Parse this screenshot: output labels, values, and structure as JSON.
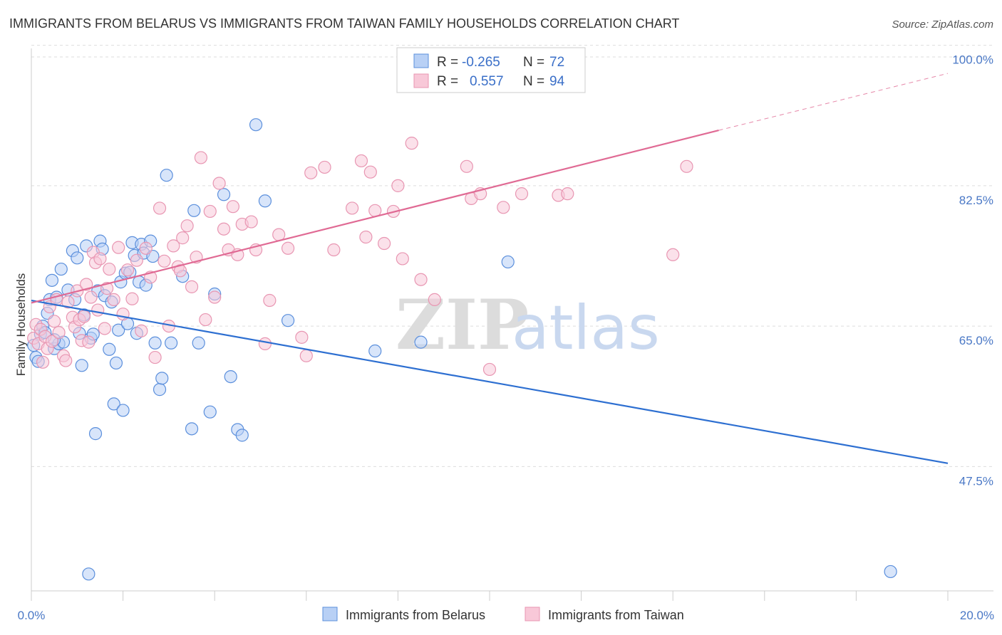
{
  "colors": {
    "belarus_fill": "#b8d0f5",
    "belarus_stroke": "#5b8fdc",
    "belarus_line": "#2d6fd1",
    "taiwan_fill": "#f8c8d8",
    "taiwan_stroke": "#e896b2",
    "taiwan_line": "#e06a94",
    "grid": "#dddddd",
    "axis": "#cccccc"
  },
  "chart_data": {
    "type": "scatter",
    "title": "IMMIGRANTS FROM BELARUS VS IMMIGRANTS FROM TAIWAN FAMILY HOUSEHOLDS CORRELATION CHART",
    "source": "Source: ZipAtlas.com",
    "ylabel": "Family Households",
    "xlabel": "",
    "xlim": [
      0,
      20
    ],
    "ylim": [
      32,
      100.5
    ],
    "grid": true,
    "y_ticks": [
      {
        "value": 100,
        "label": "100.0%"
      },
      {
        "value": 82.5,
        "label": "82.5%"
      },
      {
        "value": 65,
        "label": "65.0%"
      },
      {
        "value": 47.5,
        "label": "47.5%"
      }
    ],
    "x_tick_labels": {
      "min": "0.0%",
      "max": "20.0%"
    },
    "legend": {
      "rows": [
        {
          "r_label": "R =",
          "r_value": "-0.265",
          "n_label": "N =",
          "n_value": "72"
        },
        {
          "r_label": "R =",
          "r_value": "0.557",
          "n_label": "N =",
          "n_value": "94"
        }
      ]
    },
    "watermark": {
      "zip": "ZIP",
      "atlas": "atlas"
    },
    "series": [
      {
        "name": "Immigrants from Belarus",
        "trend": {
          "x": [
            0,
            20
          ],
          "y": [
            68.2,
            47.9
          ]
        },
        "points": [
          [
            0.05,
            62.6
          ],
          [
            0.1,
            61.1
          ],
          [
            0.15,
            60.6
          ],
          [
            0.2,
            64.0
          ],
          [
            0.25,
            65.0
          ],
          [
            0.3,
            64.2
          ],
          [
            0.35,
            66.6
          ],
          [
            0.4,
            68.3
          ],
          [
            0.45,
            70.7
          ],
          [
            0.5,
            62.2
          ],
          [
            0.55,
            68.6
          ],
          [
            0.6,
            62.8
          ],
          [
            0.65,
            72.1
          ],
          [
            0.7,
            63.0
          ],
          [
            0.8,
            69.5
          ],
          [
            0.9,
            74.4
          ],
          [
            0.95,
            68.3
          ],
          [
            1.0,
            73.5
          ],
          [
            1.1,
            60.1
          ],
          [
            1.15,
            66.4
          ],
          [
            1.2,
            75.0
          ],
          [
            1.3,
            63.5
          ],
          [
            1.35,
            64.0
          ],
          [
            1.4,
            51.6
          ],
          [
            1.45,
            69.4
          ],
          [
            1.5,
            75.6
          ],
          [
            1.55,
            74.6
          ],
          [
            1.6,
            68.8
          ],
          [
            1.7,
            62.1
          ],
          [
            1.75,
            68.0
          ],
          [
            1.8,
            55.3
          ],
          [
            1.85,
            60.4
          ],
          [
            1.9,
            64.5
          ],
          [
            1.95,
            70.5
          ],
          [
            2.0,
            54.5
          ],
          [
            2.05,
            71.6
          ],
          [
            2.1,
            65.3
          ],
          [
            2.15,
            71.7
          ],
          [
            2.2,
            75.4
          ],
          [
            2.25,
            73.8
          ],
          [
            2.3,
            64.1
          ],
          [
            2.35,
            70.5
          ],
          [
            2.4,
            75.2
          ],
          [
            2.45,
            74.1
          ],
          [
            2.5,
            70.1
          ],
          [
            2.6,
            75.6
          ],
          [
            2.65,
            73.7
          ],
          [
            2.7,
            62.9
          ],
          [
            2.8,
            57.1
          ],
          [
            2.85,
            58.5
          ],
          [
            2.95,
            83.8
          ],
          [
            3.05,
            62.9
          ],
          [
            3.3,
            71.2
          ],
          [
            3.5,
            52.2
          ],
          [
            3.55,
            79.4
          ],
          [
            3.65,
            62.9
          ],
          [
            3.9,
            54.3
          ],
          [
            4.0,
            69.0
          ],
          [
            4.2,
            81.4
          ],
          [
            4.35,
            58.7
          ],
          [
            4.5,
            52.1
          ],
          [
            4.6,
            51.4
          ],
          [
            4.9,
            90.1
          ],
          [
            5.1,
            80.6
          ],
          [
            5.6,
            65.7
          ],
          [
            7.5,
            61.9
          ],
          [
            8.5,
            63.0
          ],
          [
            10.4,
            73.0
          ],
          [
            1.25,
            34.1
          ],
          [
            18.75,
            34.4
          ],
          [
            0.5,
            63.3
          ],
          [
            1.05,
            64.1
          ]
        ]
      },
      {
        "name": "Immigrants from Taiwan",
        "trend": {
          "x": [
            0,
            15
          ],
          "y": [
            67.9,
            89.4
          ]
        },
        "trend_dashed": {
          "x": [
            15,
            20
          ],
          "y": [
            89.4,
            96.5
          ]
        },
        "points": [
          [
            0.05,
            63.5
          ],
          [
            0.1,
            65.2
          ],
          [
            0.15,
            62.8
          ],
          [
            0.2,
            64.6
          ],
          [
            0.25,
            60.5
          ],
          [
            0.3,
            63.7
          ],
          [
            0.35,
            62.2
          ],
          [
            0.4,
            67.4
          ],
          [
            0.45,
            63.1
          ],
          [
            0.5,
            65.6
          ],
          [
            0.55,
            68.3
          ],
          [
            0.6,
            64.2
          ],
          [
            0.7,
            61.3
          ],
          [
            0.75,
            60.7
          ],
          [
            0.8,
            68.0
          ],
          [
            0.9,
            66.1
          ],
          [
            0.95,
            64.9
          ],
          [
            1.0,
            69.4
          ],
          [
            1.05,
            65.8
          ],
          [
            1.1,
            63.2
          ],
          [
            1.15,
            66.2
          ],
          [
            1.2,
            70.2
          ],
          [
            1.25,
            63.0
          ],
          [
            1.3,
            68.6
          ],
          [
            1.35,
            74.2
          ],
          [
            1.4,
            72.9
          ],
          [
            1.45,
            67.0
          ],
          [
            1.5,
            73.4
          ],
          [
            1.6,
            64.7
          ],
          [
            1.65,
            69.7
          ],
          [
            1.7,
            72.1
          ],
          [
            1.8,
            68.3
          ],
          [
            1.9,
            74.8
          ],
          [
            2.0,
            66.5
          ],
          [
            2.1,
            72.0
          ],
          [
            2.2,
            68.4
          ],
          [
            2.3,
            73.2
          ],
          [
            2.4,
            64.4
          ],
          [
            2.5,
            74.7
          ],
          [
            2.6,
            71.1
          ],
          [
            2.7,
            61.1
          ],
          [
            2.8,
            79.7
          ],
          [
            2.9,
            73.1
          ],
          [
            3.0,
            65.0
          ],
          [
            3.1,
            75.0
          ],
          [
            3.2,
            72.4
          ],
          [
            3.25,
            71.9
          ],
          [
            3.3,
            76.0
          ],
          [
            3.4,
            77.5
          ],
          [
            3.5,
            69.9
          ],
          [
            3.6,
            73.6
          ],
          [
            3.7,
            86.0
          ],
          [
            3.8,
            65.8
          ],
          [
            3.9,
            79.3
          ],
          [
            4.0,
            68.6
          ],
          [
            4.1,
            82.8
          ],
          [
            4.2,
            77.1
          ],
          [
            4.3,
            74.5
          ],
          [
            4.4,
            79.9
          ],
          [
            4.5,
            73.9
          ],
          [
            4.6,
            77.7
          ],
          [
            4.8,
            78.0
          ],
          [
            4.9,
            74.5
          ],
          [
            5.1,
            62.8
          ],
          [
            5.2,
            68.2
          ],
          [
            5.4,
            76.4
          ],
          [
            5.6,
            74.7
          ],
          [
            5.9,
            63.6
          ],
          [
            6.0,
            61.3
          ],
          [
            6.1,
            84.1
          ],
          [
            6.4,
            84.8
          ],
          [
            6.6,
            74.5
          ],
          [
            7.0,
            79.7
          ],
          [
            7.2,
            85.6
          ],
          [
            7.3,
            76.1
          ],
          [
            7.4,
            84.2
          ],
          [
            7.5,
            79.4
          ],
          [
            7.7,
            75.3
          ],
          [
            7.9,
            79.3
          ],
          [
            8.0,
            82.5
          ],
          [
            8.1,
            73.4
          ],
          [
            8.3,
            87.8
          ],
          [
            8.5,
            70.8
          ],
          [
            8.8,
            68.3
          ],
          [
            9.5,
            84.9
          ],
          [
            9.6,
            80.9
          ],
          [
            9.8,
            81.5
          ],
          [
            10.0,
            59.6
          ],
          [
            10.3,
            79.8
          ],
          [
            10.7,
            81.5
          ],
          [
            11.5,
            81.3
          ],
          [
            11.7,
            81.5
          ],
          [
            14.0,
            73.9
          ],
          [
            14.3,
            84.9
          ]
        ]
      }
    ]
  }
}
